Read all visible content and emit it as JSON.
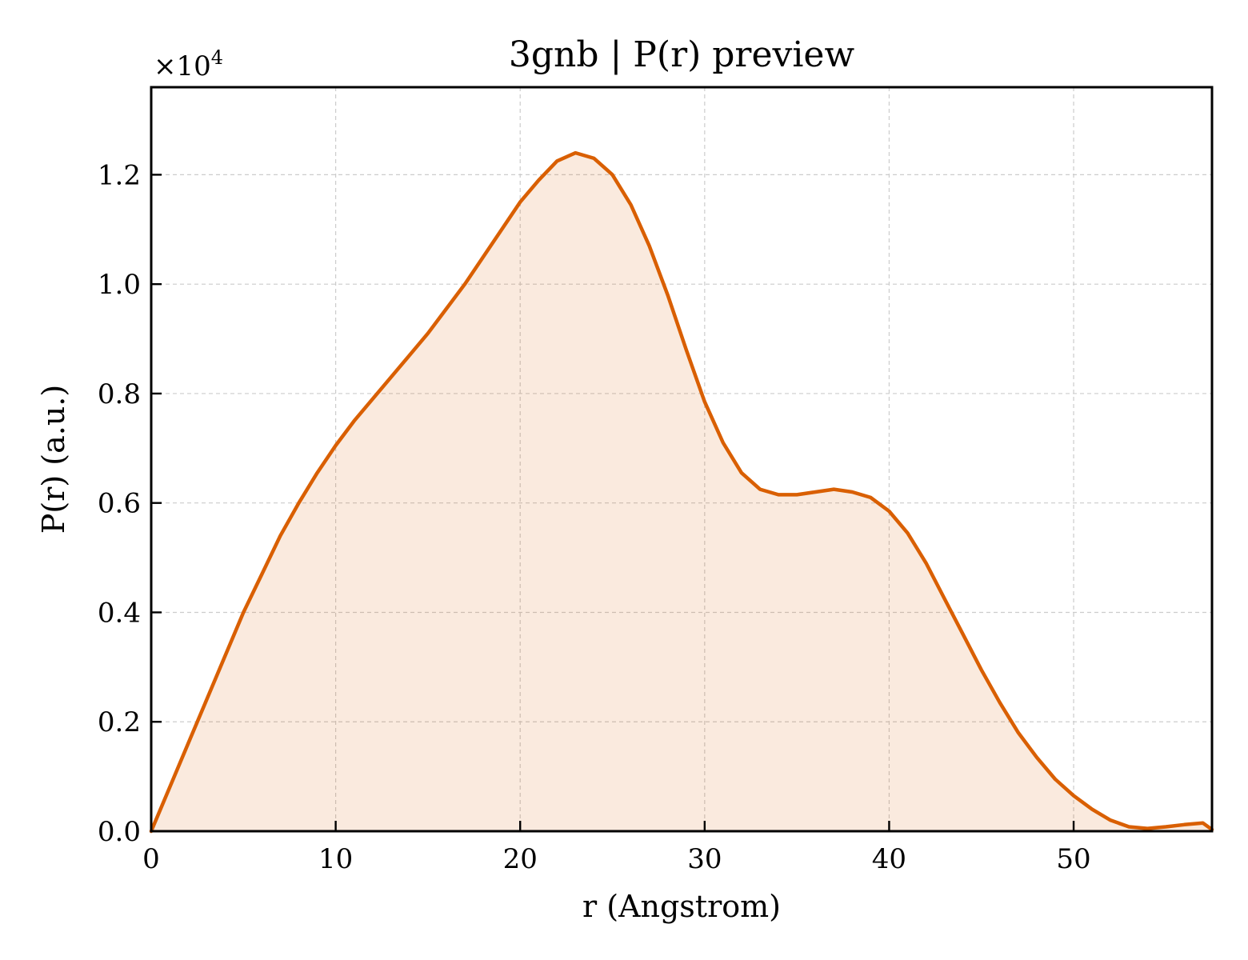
{
  "chart_data": {
    "type": "area",
    "title": "3gnb | P(r) preview",
    "xlabel": "r (Angstrom)",
    "ylabel": "P(r) (a.u.)",
    "y_offset_label": {
      "base": "×10",
      "exponent": "4"
    },
    "xlim": [
      0,
      57.5
    ],
    "ylim": [
      0,
      1.36
    ],
    "x_ticks": [
      0,
      10,
      20,
      30,
      40,
      50
    ],
    "x_tick_labels": [
      "0",
      "10",
      "20",
      "30",
      "40",
      "50"
    ],
    "y_ticks": [
      0,
      0.2,
      0.4,
      0.6,
      0.8,
      1.0,
      1.2
    ],
    "y_tick_labels": [
      "0.0",
      "0.2",
      "0.4",
      "0.6",
      "0.8",
      "1.0",
      "1.2"
    ],
    "grid": true,
    "line_color": "#d95f02",
    "fill_color": "#d95f02",
    "fill_opacity": 0.13,
    "x": [
      0,
      1,
      2,
      3,
      4,
      5,
      6,
      7,
      8,
      9,
      10,
      11,
      12,
      13,
      14,
      15,
      16,
      17,
      18,
      19,
      20,
      21,
      22,
      23,
      24,
      25,
      26,
      27,
      28,
      29,
      30,
      31,
      32,
      33,
      34,
      35,
      36,
      37,
      38,
      39,
      40,
      41,
      42,
      43,
      44,
      45,
      46,
      47,
      48,
      49,
      50,
      51,
      52,
      53,
      54,
      55,
      56,
      57,
      57.5
    ],
    "y": [
      0.0,
      0.08,
      0.16,
      0.24,
      0.32,
      0.4,
      0.47,
      0.54,
      0.6,
      0.655,
      0.705,
      0.75,
      0.79,
      0.83,
      0.87,
      0.91,
      0.955,
      1.0,
      1.05,
      1.1,
      1.15,
      1.19,
      1.225,
      1.24,
      1.23,
      1.2,
      1.145,
      1.07,
      0.98,
      0.88,
      0.785,
      0.71,
      0.655,
      0.625,
      0.615,
      0.615,
      0.62,
      0.625,
      0.62,
      0.61,
      0.585,
      0.545,
      0.49,
      0.425,
      0.36,
      0.295,
      0.235,
      0.18,
      0.135,
      0.095,
      0.065,
      0.04,
      0.02,
      0.008,
      0.005,
      0.008,
      0.012,
      0.015,
      0.003
    ]
  }
}
